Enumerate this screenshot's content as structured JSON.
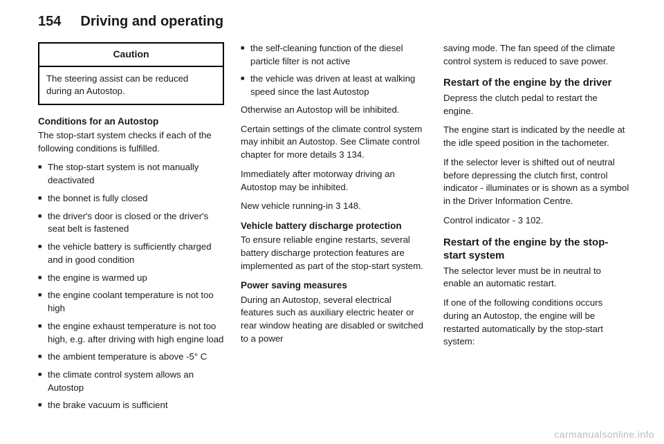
{
  "header": {
    "page_number": "154",
    "chapter": "Driving and operating"
  },
  "col1": {
    "caution_title": "Caution",
    "caution_body": "The steering assist can be reduced during an Autostop.",
    "sub1": "Conditions for an Autostop",
    "p1": "The stop-start system checks if each of the following conditions is fulfilled.",
    "items": [
      "The stop-start system is not manually deactivated",
      "the bonnet is fully closed",
      "the driver's door is closed or the driver's seat belt is fastened",
      "the vehicle battery is sufficiently charged and in good condition",
      "the engine is warmed up",
      "the engine coolant temperature is not too high",
      "the engine exhaust temperature is not too high, e.g. after driving with high engine load",
      "the ambient temperature is above -5° C",
      "the climate control system allows an Autostop",
      "the brake vacuum is sufficient"
    ]
  },
  "col2": {
    "items_top": [
      "the self-cleaning function of the diesel particle filter is not active",
      "the vehicle was driven at least at walking speed since the last Autostop"
    ],
    "p1": "Otherwise an Autostop will be inhibited.",
    "p2a": "Certain settings of the climate control system may inhibit an Autostop. See Climate control chapter for more details ",
    "p2ref": "3 134.",
    "p3": "Immediately after motorway driving an Autostop may be inhibited.",
    "p4a": "New vehicle running-in ",
    "p4ref": "3 148.",
    "sub1": "Vehicle battery discharge protection",
    "p5": "To ensure reliable engine restarts, several battery discharge protection features are implemented as part of the stop-start system.",
    "sub2": "Power saving measures",
    "p6": "During an Autostop, several electrical features such as auxiliary electric heater or rear window heating are disabled or switched to a power"
  },
  "col3": {
    "p1": "saving mode. The fan speed of the climate control system is reduced to save power.",
    "sub1": "Restart of the engine by the driver",
    "p2": "Depress the clutch pedal to restart the engine.",
    "p3": "The engine start is indicated by the needle at the idle speed position in the tachometer.",
    "p4a": "If the selector lever is shifted out of neutral before depressing the clutch first, control indicator ",
    "p4sym": "-",
    "p4b": " illuminates or is shown as a symbol in the Driver Information Centre.",
    "p5a": "Control indicator ",
    "p5sym": "-",
    "p5b": " ",
    "p5ref": "3 102.",
    "sub2": "Restart of the engine by the stop-start system",
    "p6": "The selector lever must be in neutral to enable an automatic restart.",
    "p7": "If one of the following conditions occurs during an Autostop, the engine will be restarted automatically by the stop-start system:"
  },
  "watermark": "carmanualsonline.info"
}
